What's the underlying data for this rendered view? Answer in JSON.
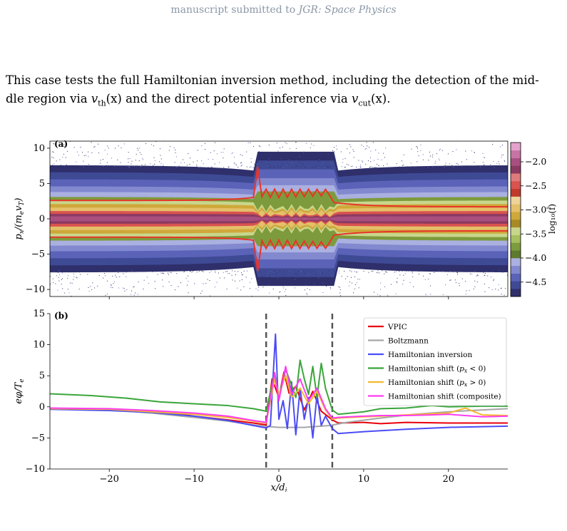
{
  "header": {
    "text": "manuscript submitted to ",
    "journal": "JGR: Space Physics"
  },
  "paragraph": {
    "line1_a": "This case tests the full Hamiltonian inversion method, including the detection of the mid-",
    "line2_a": "dle region via ",
    "line2_vth": "v",
    "line2_vth_sub": "th",
    "line2_b": "(x) and the direct potential inference via ",
    "line2_vcut": "v",
    "line2_vcut_sub": "cut",
    "line2_c": "(x)."
  },
  "chart_data": [
    {
      "type": "heatmap",
      "panel_label": "(a)",
      "ylabel": "p_x/(m_e v_T)",
      "ylabel_parts": {
        "main": "p",
        "sub": "x",
        "rest": "/(m",
        "sub2": "e",
        "v": "v",
        "sub3": "T",
        "close": ")"
      },
      "yticks": [
        "10",
        "5",
        "0",
        "−5",
        "−10"
      ],
      "ylim": [
        -11,
        11
      ],
      "xlim": [
        -27,
        27
      ],
      "colorbar": {
        "label": "log₁₀(f̂)",
        "ticks": [
          "−2.0",
          "−2.5",
          "−3.0",
          "−3.5",
          "−4.0",
          "−4.5"
        ],
        "range": [
          -4.8,
          -1.6
        ],
        "colors": [
          "#2e2f6b",
          "#3f4a95",
          "#5a63b8",
          "#8389cf",
          "#aab0e0",
          "#5d7a2e",
          "#7d9b3c",
          "#a6bf5f",
          "#c8d68c",
          "#a88a24",
          "#cfa83a",
          "#e4c06a",
          "#efd39a",
          "#c0392b",
          "#d9534f",
          "#e07b7b",
          "#8b3a62",
          "#a94f80",
          "#c873a6",
          "#e4a2cc"
        ]
      }
    },
    {
      "type": "line",
      "panel_label": "(b)",
      "xlabel": "x/d_i",
      "xlabel_parts": {
        "main": "x/d",
        "sub": "i"
      },
      "ylabel": "eφ/T_e",
      "ylabel_parts": {
        "main": "eφ/T",
        "sub": "e"
      },
      "xticks": [
        "−20",
        "−10",
        "0",
        "10",
        "20"
      ],
      "xtick_values": [
        -20,
        -10,
        0,
        10,
        20
      ],
      "yticks": [
        "15",
        "10",
        "5",
        "0",
        "−5",
        "−10"
      ],
      "ytick_values": [
        15,
        10,
        5,
        0,
        -5,
        -10
      ],
      "xlim": [
        -27,
        27
      ],
      "ylim": [
        -10,
        15
      ],
      "vlines": [
        -1.5,
        6.3
      ],
      "series": [
        {
          "name": "VPIC",
          "color": "#e8000b",
          "x": [
            -27,
            -20,
            -15,
            -12,
            -10,
            -6,
            -3,
            -1.5,
            -0.8,
            0,
            0.6,
            1.2,
            2,
            3,
            4,
            5,
            6.3,
            7,
            10,
            12,
            15,
            20,
            27
          ],
          "values": [
            -0.3,
            -0.5,
            -0.8,
            -1.1,
            -1.5,
            -2.1,
            -2.6,
            -2.9,
            4.5,
            1.5,
            5.6,
            2.2,
            3.3,
            -0.5,
            2.5,
            -0.7,
            -2.1,
            -2.6,
            -2.5,
            -2.7,
            -2.5,
            -2.6,
            -2.6
          ]
        },
        {
          "name": "Boltzmann",
          "color": "#a6a6a6",
          "x": [
            -27,
            -20,
            -15,
            -10,
            -6,
            -3,
            -1,
            0,
            3,
            6,
            8,
            12,
            16,
            20,
            24,
            27
          ],
          "values": [
            -0.2,
            -0.5,
            -1.0,
            -1.7,
            -2.3,
            -2.9,
            -3.2,
            -3.3,
            -3.3,
            -3.0,
            -2.5,
            -1.8,
            -1.2,
            -0.8,
            -0.5,
            -0.3
          ]
        },
        {
          "name": "Hamiltonian inversion",
          "color": "#4c4cf5",
          "x": [
            -27,
            -20,
            -15,
            -10,
            -6,
            -3,
            -1.5,
            -1,
            -0.4,
            0,
            0.5,
            1,
            1.5,
            2,
            2.5,
            3,
            3.5,
            4,
            4.5,
            5,
            5.5,
            6.3,
            7,
            10,
            15,
            20,
            27
          ],
          "values": [
            -0.4,
            -0.6,
            -0.9,
            -1.5,
            -2.2,
            -3.0,
            -3.4,
            -3.0,
            11.7,
            -2.0,
            1.0,
            -3.5,
            4.0,
            -4.5,
            3.0,
            -2.0,
            1.5,
            -5.0,
            2.0,
            -3.0,
            -1.5,
            -3.5,
            -4.3,
            -4.0,
            -3.6,
            -3.3,
            -3.1
          ]
        },
        {
          "name": "Hamiltonian shift (p_x < 0)",
          "color": "#3aa53a",
          "x": [
            -27,
            -22,
            -18,
            -14,
            -10,
            -6,
            -3,
            -1.5,
            -0.5,
            0,
            0.8,
            1.5,
            2,
            2.5,
            3,
            3.5,
            4,
            4.5,
            5,
            5.5,
            6.3,
            7,
            10,
            12,
            15,
            18,
            20,
            24,
            27
          ],
          "values": [
            2.1,
            1.8,
            1.4,
            0.8,
            0.5,
            0.2,
            -0.3,
            -0.7,
            5.5,
            1.8,
            6.0,
            3.5,
            1.5,
            7.5,
            4.5,
            2.0,
            6.5,
            1.5,
            7.0,
            3.0,
            -0.5,
            -1.2,
            -0.8,
            -0.3,
            -0.2,
            0.2,
            0.0,
            0.1,
            0.1
          ]
        },
        {
          "name": "Hamiltonian shift (p_x > 0)",
          "color": "#f5b92e",
          "x": [
            -27,
            -20,
            -15,
            -10,
            -6,
            -3,
            -1.5,
            -0.5,
            0,
            0.8,
            1.5,
            2.5,
            3.5,
            4.5,
            5.5,
            6.3,
            7,
            10,
            12,
            15,
            20,
            22,
            24,
            27
          ],
          "values": [
            -0.3,
            -0.4,
            -0.8,
            -1.2,
            -1.7,
            -2.3,
            -2.6,
            4.5,
            2.0,
            5.0,
            1.5,
            3.0,
            0.5,
            2.5,
            -0.5,
            -2.0,
            -1.8,
            -1.6,
            -1.5,
            -1.3,
            -1.0,
            -0.2,
            -1.3,
            -1.4
          ]
        },
        {
          "name": "Hamiltonian shift (composite)",
          "color": "#ff3cf0",
          "x": [
            -27,
            -20,
            -15,
            -10,
            -6,
            -3,
            -1.5,
            -0.5,
            0,
            0.8,
            1.5,
            2.5,
            3.5,
            4.5,
            5.5,
            6.3,
            7,
            10,
            12,
            15,
            18,
            20,
            24,
            27
          ],
          "values": [
            -0.2,
            -0.3,
            -0.6,
            -1.0,
            -1.5,
            -2.2,
            -2.5,
            5.5,
            1.0,
            6.5,
            2.0,
            4.5,
            1.0,
            3.0,
            -0.3,
            -1.8,
            -1.7,
            -1.5,
            -1.4,
            -1.4,
            -1.3,
            -1.2,
            -1.6,
            -1.5
          ]
        }
      ],
      "legend": {
        "position": "upper-right"
      }
    }
  ]
}
